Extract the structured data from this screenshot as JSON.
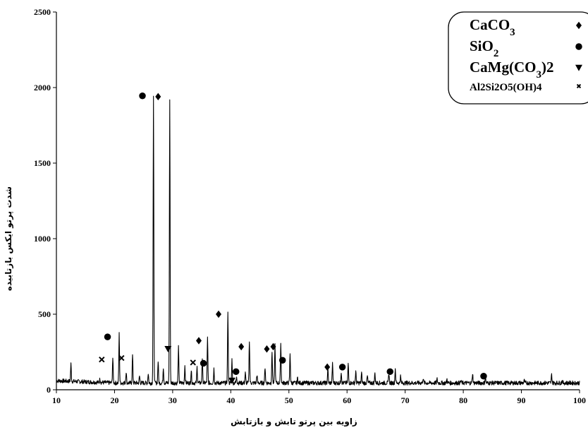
{
  "chart_data": {
    "type": "line",
    "title": "",
    "xlabel": "زاویه بین پرتو تابش و بازتابش",
    "ylabel": "شدت پرتو ایکس بازتابیده",
    "xlim": [
      10,
      100
    ],
    "ylim": [
      0,
      2500
    ],
    "x_ticks": [
      10,
      20,
      30,
      40,
      50,
      60,
      70,
      80,
      90,
      100
    ],
    "y_ticks": [
      0,
      500,
      1000,
      1500,
      2000,
      2500
    ],
    "grid": false,
    "legend_position": "top-right",
    "series": [
      {
        "baseline": 45,
        "peaks": [
          [
            12.5,
            160
          ],
          [
            17.5,
            70
          ],
          [
            19.7,
            210
          ],
          [
            20.8,
            370
          ],
          [
            22.0,
            120
          ],
          [
            23.1,
            230
          ],
          [
            24.3,
            90
          ],
          [
            25.8,
            110
          ],
          [
            26.7,
            1930
          ],
          [
            27.5,
            190
          ],
          [
            28.4,
            150
          ],
          [
            29.5,
            1920
          ],
          [
            31.0,
            280
          ],
          [
            32.1,
            160
          ],
          [
            33.2,
            130
          ],
          [
            34.2,
            150
          ],
          [
            35.1,
            210
          ],
          [
            36.0,
            340
          ],
          [
            37.1,
            140
          ],
          [
            39.5,
            510
          ],
          [
            40.2,
            200
          ],
          [
            41.0,
            90
          ],
          [
            42.5,
            110
          ],
          [
            43.2,
            330
          ],
          [
            44.5,
            100
          ],
          [
            45.9,
            150
          ],
          [
            47.1,
            250
          ],
          [
            47.6,
            300
          ],
          [
            48.6,
            310
          ],
          [
            50.2,
            240
          ],
          [
            51.5,
            80
          ],
          [
            56.7,
            140
          ],
          [
            57.5,
            170
          ],
          [
            59.0,
            120
          ],
          [
            60.2,
            170
          ],
          [
            61.5,
            120
          ],
          [
            62.5,
            110
          ],
          [
            63.5,
            90
          ],
          [
            64.8,
            110
          ],
          [
            67.2,
            110
          ],
          [
            68.3,
            140
          ],
          [
            69.2,
            90
          ],
          [
            73.1,
            80
          ],
          [
            75.5,
            70
          ],
          [
            77.2,
            70
          ],
          [
            79.6,
            60
          ],
          [
            81.6,
            110
          ],
          [
            83.8,
            90
          ],
          [
            90.5,
            60
          ],
          [
            95.2,
            100
          ],
          [
            97.0,
            60
          ]
        ]
      }
    ],
    "legend": [
      {
        "label": "CaCO3",
        "base": "CaCO",
        "sub": "3",
        "tail": "",
        "marker": "diamond"
      },
      {
        "label": "SiO2",
        "base": "SiO",
        "sub": "2",
        "tail": "",
        "marker": "circle"
      },
      {
        "label": "CaMg(CO3)2",
        "base": "CaMg(CO",
        "sub": "3",
        "tail": ")2",
        "marker": "triangle-down"
      },
      {
        "label": "Al2Si2O5(OH)4",
        "base": "Al2Si2O5(OH)4",
        "sub": "",
        "tail": "",
        "marker": "x"
      }
    ],
    "markers": [
      {
        "type": "circle",
        "x": 24.8,
        "y": 1945
      },
      {
        "type": "diamond",
        "x": 27.5,
        "y": 1940
      },
      {
        "type": "triangle-down",
        "x": 29.2,
        "y": 270
      },
      {
        "type": "circle",
        "x": 18.8,
        "y": 350
      },
      {
        "type": "x",
        "x": 17.8,
        "y": 200
      },
      {
        "type": "x",
        "x": 21.2,
        "y": 210
      },
      {
        "type": "x",
        "x": 33.5,
        "y": 180
      },
      {
        "type": "diamond",
        "x": 34.5,
        "y": 325
      },
      {
        "type": "circle",
        "x": 35.3,
        "y": 175
      },
      {
        "type": "diamond",
        "x": 37.9,
        "y": 500
      },
      {
        "type": "triangle-down",
        "x": 40.2,
        "y": 60
      },
      {
        "type": "circle",
        "x": 40.9,
        "y": 120
      },
      {
        "type": "diamond",
        "x": 41.8,
        "y": 285
      },
      {
        "type": "diamond",
        "x": 46.2,
        "y": 270
      },
      {
        "type": "diamond",
        "x": 47.3,
        "y": 285
      },
      {
        "type": "circle",
        "x": 48.9,
        "y": 195
      },
      {
        "type": "diamond",
        "x": 56.6,
        "y": 150
      },
      {
        "type": "circle",
        "x": 59.2,
        "y": 150
      },
      {
        "type": "circle",
        "x": 67.4,
        "y": 120
      },
      {
        "type": "circle",
        "x": 83.5,
        "y": 90
      }
    ]
  }
}
